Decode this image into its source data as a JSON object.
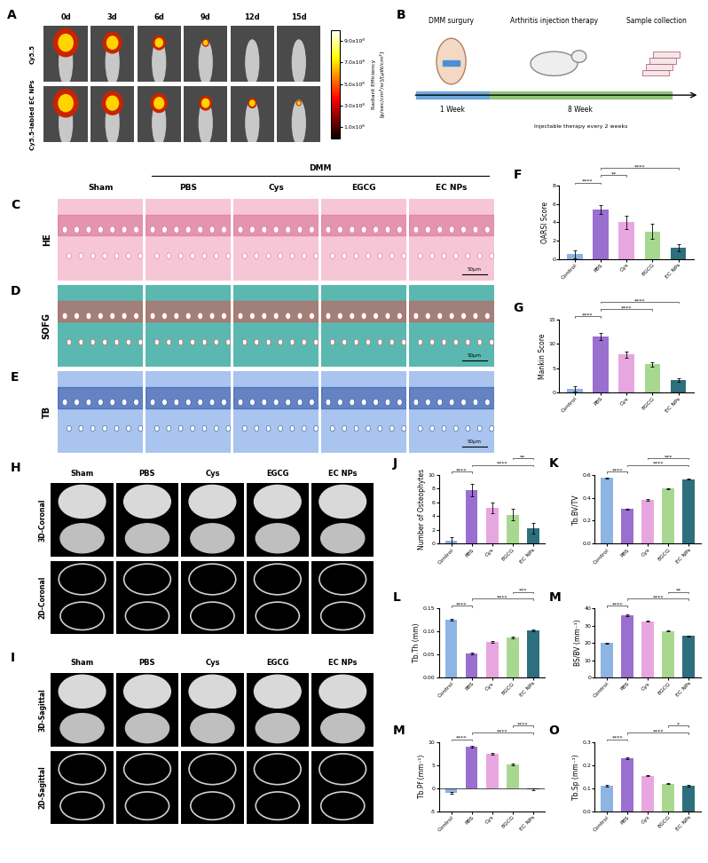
{
  "imaging": {
    "panel": "A",
    "timepoints": [
      "0d",
      "3d",
      "6d",
      "9d",
      "12d",
      "15d"
    ],
    "rows": [
      "Cy5.5",
      "Cy5.5-labled EC NPs"
    ],
    "colorbar": {
      "label_lines": [
        "Radiant Efficiency",
        "[p/sec/cm²/sr]/[μW/cm²]"
      ],
      "lim": [
        0,
        1000000000
      ],
      "ticks": [
        {
          "value": 100000000,
          "label": "1.0x10⁸"
        },
        {
          "value": 300000000,
          "label": "3.0x10⁸"
        },
        {
          "value": 500000000,
          "label": "5.0x10⁸"
        },
        {
          "value": 700000000,
          "label": "7.0x10⁸"
        },
        {
          "value": 900000000,
          "label": "9.0x10⁸"
        }
      ]
    }
  },
  "schematic": {
    "panel": "B",
    "steps": [
      "DMM surgury",
      "Arthritis injection therapy",
      "Sample collection"
    ],
    "durations": [
      "1 Week",
      "8 Week"
    ],
    "note": "Injectable therapy every 2 weeks"
  },
  "histology": {
    "panels": [
      "C",
      "D",
      "E"
    ],
    "stains": [
      "HE",
      "SOFG",
      "TB"
    ],
    "groups": [
      "Sham",
      "PBS",
      "Cys",
      "EGCG",
      "EC NPs"
    ],
    "model": "DMM",
    "scale_bar": "50μm"
  },
  "microct": {
    "groups": [
      "Sham",
      "PBS",
      "Cys",
      "EGCG",
      "EC NPs"
    ],
    "panels": [
      {
        "panel": "H",
        "views": [
          "3D-Coronal",
          "2D-Coronal"
        ]
      },
      {
        "panel": "I",
        "views": [
          "3D-Sagittal",
          "2D-Sagittal"
        ]
      }
    ]
  },
  "chart_data": [
    {
      "panel": "F",
      "type": "bar",
      "ylabel": "OARSI Score",
      "categories": [
        "Control",
        "PBS",
        "Cys",
        "EGCG",
        "EC NPs"
      ],
      "values": [
        0.5,
        5.4,
        4.0,
        3.0,
        1.2
      ],
      "errors": [
        0.4,
        0.5,
        0.7,
        0.8,
        0.4
      ],
      "colors": [
        "#8db4e2",
        "#9a6fd0",
        "#e8a6e0",
        "#a8d890",
        "#2e6f7e"
      ],
      "ylim": [
        0,
        8
      ],
      "yticks": [
        0,
        2,
        4,
        6,
        8
      ],
      "grid": false,
      "significance": [
        {
          "pair": [
            0,
            1
          ],
          "label": "****"
        },
        {
          "pair": [
            1,
            2
          ],
          "label": "**"
        },
        {
          "pair": [
            1,
            4
          ],
          "label": "****"
        }
      ]
    },
    {
      "panel": "G",
      "type": "bar",
      "ylabel": "Mankin Score",
      "categories": [
        "Control",
        "PBS",
        "Cys",
        "EGCG",
        "EC NPs"
      ],
      "values": [
        0.8,
        11.5,
        7.8,
        5.8,
        2.6
      ],
      "errors": [
        0.6,
        0.8,
        0.6,
        0.5,
        0.3
      ],
      "colors": [
        "#8db4e2",
        "#9a6fd0",
        "#e8a6e0",
        "#a8d890",
        "#2e6f7e"
      ],
      "ylim": [
        0,
        15
      ],
      "yticks": [
        0,
        5,
        10,
        15
      ],
      "grid": false,
      "significance": [
        {
          "pair": [
            0,
            1
          ],
          "label": "****"
        },
        {
          "pair": [
            1,
            3
          ],
          "label": "****"
        },
        {
          "pair": [
            1,
            4
          ],
          "label": "****"
        }
      ]
    },
    {
      "panel": "J",
      "type": "bar",
      "ylabel": "Number of Osteophytes",
      "categories": [
        "Control",
        "PBS",
        "Cys",
        "EGCG",
        "EC NPs"
      ],
      "values": [
        0.4,
        7.8,
        5.2,
        4.2,
        2.2
      ],
      "errors": [
        0.5,
        0.9,
        0.8,
        0.8,
        0.8
      ],
      "colors": [
        "#8db4e2",
        "#9a6fd0",
        "#e8a6e0",
        "#a8d890",
        "#2e6f7e"
      ],
      "ylim": [
        0,
        10
      ],
      "yticks": [
        0,
        2,
        4,
        6,
        8,
        10
      ],
      "grid": false,
      "significance": [
        {
          "pair": [
            0,
            1
          ],
          "label": "****"
        },
        {
          "pair": [
            1,
            4
          ],
          "label": "****"
        },
        {
          "pair": [
            3,
            4
          ],
          "label": "**"
        }
      ]
    },
    {
      "panel": "K",
      "type": "bar",
      "ylabel": "Tb.BV/TV",
      "categories": [
        "Control",
        "PBS",
        "Cys",
        "EGCG",
        "EC NPs"
      ],
      "values": [
        0.57,
        0.3,
        0.38,
        0.48,
        0.56
      ],
      "errors": [
        0.005,
        0.005,
        0.005,
        0.005,
        0.005
      ],
      "colors": [
        "#8db4e2",
        "#9a6fd0",
        "#e8a6e0",
        "#a8d890",
        "#2e6f7e"
      ],
      "ylim": [
        0,
        0.6
      ],
      "yticks": [
        {
          "value": 0,
          "label": "0.0"
        },
        0.2,
        0.4,
        0.6
      ],
      "grid": false,
      "significance": [
        {
          "pair": [
            0,
            1
          ],
          "label": "****"
        },
        {
          "pair": [
            1,
            4
          ],
          "label": "****"
        },
        {
          "pair": [
            2,
            4
          ],
          "label": "***"
        }
      ]
    },
    {
      "panel": "L",
      "type": "bar",
      "ylabel": "Tb.Th (mm)",
      "categories": [
        "Control",
        "PBS",
        "Cys",
        "EGCG",
        "EC NPs"
      ],
      "values": [
        0.125,
        0.053,
        0.078,
        0.087,
        0.103
      ],
      "errors": [
        0.002,
        0.002,
        0.002,
        0.002,
        0.002
      ],
      "colors": [
        "#8db4e2",
        "#9a6fd0",
        "#e8a6e0",
        "#a8d890",
        "#2e6f7e"
      ],
      "ylim": [
        0,
        0.15
      ],
      "yticks": [
        {
          "value": 0,
          "label": "0.00"
        },
        0.05,
        {
          "value": 0.1,
          "label": "0.10"
        },
        0.15
      ],
      "grid": false,
      "significance": [
        {
          "pair": [
            0,
            1
          ],
          "label": "****"
        },
        {
          "pair": [
            1,
            4
          ],
          "label": "****"
        },
        {
          "pair": [
            3,
            4
          ],
          "label": "***"
        }
      ]
    },
    {
      "panel": "M",
      "type": "bar",
      "ylabel": "BS/BV (mm⁻¹)",
      "categories": [
        "Control",
        "PBS",
        "Cys",
        "EGCG",
        "EC NPs"
      ],
      "values": [
        20,
        36,
        32.5,
        27,
        24
      ],
      "errors": [
        0.3,
        0.3,
        0.3,
        0.3,
        0.3
      ],
      "colors": [
        "#8db4e2",
        "#9a6fd0",
        "#e8a6e0",
        "#a8d890",
        "#2e6f7e"
      ],
      "ylim": [
        0,
        40
      ],
      "yticks": [
        0,
        10,
        20,
        30,
        40
      ],
      "grid": false,
      "significance": [
        {
          "pair": [
            0,
            1
          ],
          "label": "****"
        },
        {
          "pair": [
            1,
            4
          ],
          "label": "****"
        },
        {
          "pair": [
            3,
            4
          ],
          "label": "**"
        }
      ]
    },
    {
      "panel": "M",
      "type": "bar",
      "ylabel": "Tb.Pf (mm⁻¹)",
      "categories": [
        "Control",
        "PBS",
        "Cys",
        "EGCG",
        "EC NPs"
      ],
      "values": [
        -1.0,
        9.0,
        7.5,
        5.2,
        -0.3
      ],
      "errors": [
        0.2,
        0.2,
        0.2,
        0.2,
        0.2
      ],
      "colors": [
        "#8db4e2",
        "#9a6fd0",
        "#e8a6e0",
        "#a8d890",
        "#2e6f7e"
      ],
      "ylim": [
        -5,
        10
      ],
      "yticks": [
        -5,
        0,
        5,
        10
      ],
      "grid": false,
      "significance": [
        {
          "pair": [
            0,
            1
          ],
          "label": "****"
        },
        {
          "pair": [
            1,
            4
          ],
          "label": "****"
        },
        {
          "pair": [
            3,
            4
          ],
          "label": "****"
        }
      ]
    },
    {
      "panel": "O",
      "type": "bar",
      "ylabel": "Tb.Sp (mm⁻¹)",
      "categories": [
        "Control",
        "PBS",
        "Cys",
        "EGCG",
        "EC NPs"
      ],
      "values": [
        0.11,
        0.23,
        0.155,
        0.12,
        0.11
      ],
      "errors": [
        0.003,
        0.003,
        0.003,
        0.003,
        0.003
      ],
      "colors": [
        "#8db4e2",
        "#9a6fd0",
        "#e8a6e0",
        "#a8d890",
        "#2e6f7e"
      ],
      "ylim": [
        0,
        0.3
      ],
      "yticks": [
        {
          "value": 0,
          "label": "0.0"
        },
        0.1,
        0.2,
        0.3
      ],
      "grid": false,
      "significance": [
        {
          "pair": [
            0,
            1
          ],
          "label": "****"
        },
        {
          "pair": [
            1,
            4
          ],
          "label": "****"
        },
        {
          "pair": [
            3,
            4
          ],
          "label": "*"
        }
      ]
    }
  ]
}
